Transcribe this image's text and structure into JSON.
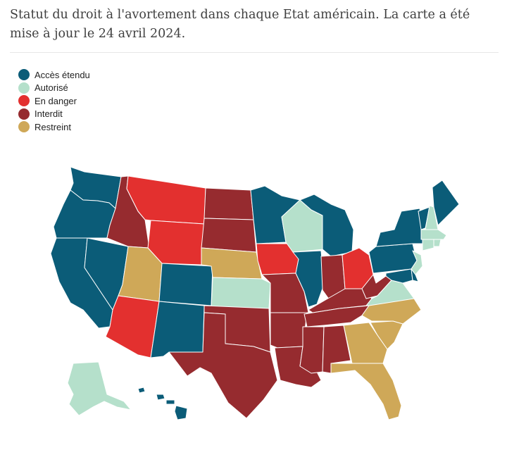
{
  "header": {
    "title": "Statut du droit à l'avortement dans chaque Etat américain. La carte a été mise à jour le 24 avril 2024."
  },
  "colors": {
    "acces_etendu": "#0b5c78",
    "autorise": "#b5e0cb",
    "en_danger": "#e3302f",
    "interdit": "#962b2f",
    "restreint": "#cfa858"
  },
  "legend": {
    "items": [
      {
        "key": "acces_etendu",
        "label": "Accès étendu"
      },
      {
        "key": "autorise",
        "label": "Autorisé"
      },
      {
        "key": "en_danger",
        "label": "En danger"
      },
      {
        "key": "interdit",
        "label": "Interdit"
      },
      {
        "key": "restreint",
        "label": "Restreint"
      }
    ]
  },
  "states": {
    "WA": "acces_etendu",
    "OR": "acces_etendu",
    "CA": "acces_etendu",
    "NV": "acces_etendu",
    "ID": "interdit",
    "MT": "en_danger",
    "WY": "en_danger",
    "UT": "restreint",
    "AZ": "en_danger",
    "CO": "acces_etendu",
    "NM": "acces_etendu",
    "ND": "interdit",
    "SD": "interdit",
    "NE": "restreint",
    "KS": "autorise",
    "OK": "interdit",
    "TX": "interdit",
    "MN": "acces_etendu",
    "IA": "en_danger",
    "MO": "interdit",
    "AR": "interdit",
    "LA": "interdit",
    "WI": "autorise",
    "IL": "acces_etendu",
    "MI": "acces_etendu",
    "IN": "interdit",
    "OH": "en_danger",
    "KY": "interdit",
    "TN": "interdit",
    "MS": "interdit",
    "AL": "interdit",
    "WV": "interdit",
    "VA": "autorise",
    "NC": "restreint",
    "SC": "restreint",
    "GA": "restreint",
    "FL": "restreint",
    "PA": "acces_etendu",
    "NY": "acces_etendu",
    "VT": "acces_etendu",
    "NH": "autorise",
    "ME": "acces_etendu",
    "MA": "autorise",
    "RI": "autorise",
    "CT": "autorise",
    "NJ": "autorise",
    "DE": "acces_etendu",
    "MD": "acces_etendu",
    "AK": "autorise",
    "HI": "acces_etendu"
  }
}
